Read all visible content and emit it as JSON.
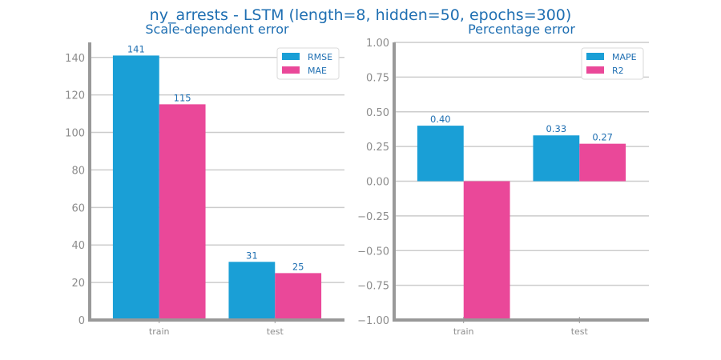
{
  "figure": {
    "title": "ny_arrests - LSTM (length=8, hidden=50, epochs=300)"
  },
  "chart_data": [
    {
      "type": "bar",
      "title": "Scale-dependent error",
      "xlabel": "",
      "ylabel": "",
      "categories": [
        "train",
        "test"
      ],
      "series": [
        {
          "name": "RMSE",
          "color": "#1a9fd6",
          "values": [
            141,
            31
          ],
          "labels": [
            "141",
            "31"
          ]
        },
        {
          "name": "MAE",
          "color": "#ea4899",
          "values": [
            115,
            25
          ],
          "labels": [
            "115",
            "25"
          ]
        }
      ],
      "ylim": [
        0,
        148
      ],
      "yticks": [
        0,
        20,
        40,
        60,
        80,
        100,
        120,
        140
      ],
      "ytick_labels": [
        "0",
        "20",
        "40",
        "60",
        "80",
        "100",
        "120",
        "140"
      ],
      "grid": true,
      "legend": "top-right"
    },
    {
      "type": "bar",
      "title": "Percentage error",
      "xlabel": "",
      "ylabel": "",
      "categories": [
        "train",
        "test"
      ],
      "series": [
        {
          "name": "MAPE",
          "color": "#1a9fd6",
          "values": [
            0.4,
            0.33
          ],
          "labels": [
            "0.40",
            "0.33"
          ]
        },
        {
          "name": "R2",
          "color": "#ea4899",
          "values": [
            -1.0,
            0.27
          ],
          "labels": [
            "",
            "0.27"
          ]
        }
      ],
      "ylim": [
        -1.0,
        1.0
      ],
      "yticks": [
        -1.0,
        -0.75,
        -0.5,
        -0.25,
        0.0,
        0.25,
        0.5,
        0.75,
        1.0
      ],
      "ytick_labels": [
        "−1.00",
        "−0.75",
        "−0.50",
        "−0.25",
        "0.00",
        "0.25",
        "0.50",
        "0.75",
        "1.00"
      ],
      "grid": true,
      "legend": "top-right"
    }
  ]
}
